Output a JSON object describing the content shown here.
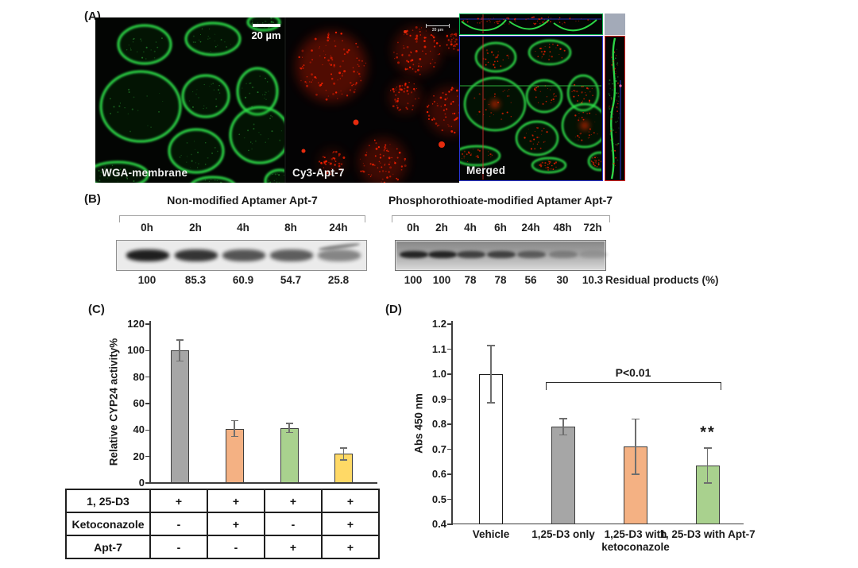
{
  "figure": {
    "background": "#ffffff"
  },
  "panel_a": {
    "label": "(A)",
    "images": [
      {
        "name": "wga",
        "caption": "WGA-membrane",
        "scale_bar": "20 µm",
        "stain_color": "#2ee04a"
      },
      {
        "name": "cy3",
        "caption": "Cy3-Apt-7",
        "scale_bar": "20 µm",
        "stain_color": "#e81800"
      },
      {
        "name": "merged",
        "caption": "Merged",
        "border_colors": {
          "top_slice": "#00b050",
          "main": "#2a35d8",
          "right_slice": "#e02222"
        },
        "corner_box_color": "#a3aab8"
      }
    ]
  },
  "panel_b": {
    "label": "(B)",
    "gels": [
      {
        "title": "Non-modified Aptamer Apt-7",
        "timepoints": [
          "0h",
          "2h",
          "4h",
          "8h",
          "24h"
        ],
        "residual_percent": [
          "100",
          "85.3",
          "60.9",
          "54.7",
          "25.8"
        ]
      },
      {
        "title": "Phosphorothioate-modified Aptamer Apt-7",
        "timepoints": [
          "0h",
          "2h",
          "4h",
          "6h",
          "24h",
          "48h",
          "72h"
        ],
        "residual_percent": [
          "100",
          "100",
          "78",
          "78",
          "56",
          "30",
          "10.3"
        ]
      }
    ],
    "residual_label": "Residual products (%)"
  },
  "panel_c": {
    "label": "(C)"
  },
  "panel_d": {
    "label": "(D)"
  },
  "chart_data": [
    {
      "type": "bar",
      "panel": "C",
      "title": "",
      "xlabel": "",
      "ylabel": "Relative CYP24 activity%",
      "ylim": [
        0,
        120
      ],
      "yticks": [
        0,
        20,
        40,
        60,
        80,
        100,
        120
      ],
      "values": [
        100,
        41,
        41.5,
        22
      ],
      "errors": [
        8,
        6,
        3.5,
        4.5
      ],
      "bar_colors": [
        "#A6A6A6",
        "#F4B183",
        "#A9D18E",
        "#FFD966"
      ],
      "grid": false,
      "condition_table": {
        "rows": [
          {
            "label": "1, 25-D3",
            "cells": [
              "+",
              "+",
              "+",
              "+"
            ]
          },
          {
            "label": "Ketoconazole",
            "cells": [
              "-",
              "+",
              "-",
              "+"
            ]
          },
          {
            "label": "Apt-7",
            "cells": [
              "-",
              "-",
              "+",
              "+"
            ]
          }
        ]
      }
    },
    {
      "type": "bar",
      "panel": "D",
      "title": "",
      "xlabel": "",
      "ylabel": "Abs 450 nm",
      "ylim": [
        0.4,
        1.2
      ],
      "ytick_labels": [
        "0.4",
        "0.5",
        "0.6",
        "0.7",
        "0.8",
        "0.9",
        "1.0",
        "1.1",
        "1.2"
      ],
      "categories": [
        "Vehicle",
        "1,25-D3 only",
        "1,25-D3 with ketoconazole",
        "1, 25-D3 with Apt-7"
      ],
      "values": [
        1.0,
        0.79,
        0.71,
        0.635
      ],
      "errors": [
        0.115,
        0.033,
        0.11,
        0.07
      ],
      "bar_colors": [
        "#FFFFFF",
        "#A6A6A6",
        "#F4B183",
        "#A9D18E"
      ],
      "grid": false,
      "significance": {
        "text": "P<0.01",
        "marker": "**",
        "marker_category_index": 3,
        "bracket_from_index": 1,
        "bracket_to_index": 3
      }
    }
  ]
}
